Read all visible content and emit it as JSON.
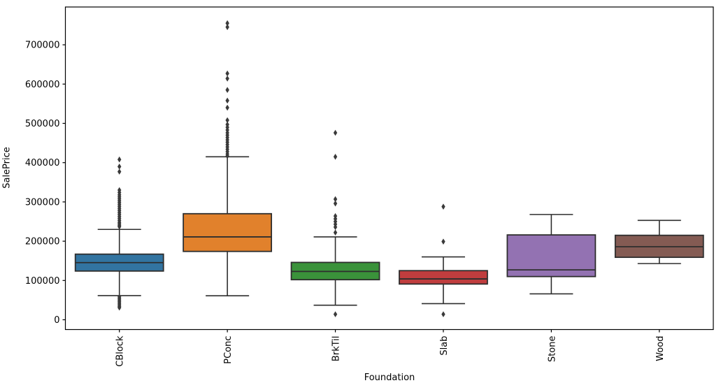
{
  "figure": {
    "background": "#ffffff",
    "text_color": "#000000",
    "spine_color": "#000000",
    "edge_color": "#2e2e2e",
    "flier_color": "#3a3a3a"
  },
  "chart_data": {
    "type": "boxplot",
    "title": "",
    "xlabel": "Foundation",
    "ylabel": "SalePrice",
    "orientation": "vertical",
    "grid": false,
    "legend_position": "none",
    "ylim": [
      -25000,
      795000
    ],
    "y_ticks": [
      0,
      100000,
      200000,
      300000,
      400000,
      500000,
      600000,
      700000
    ],
    "y_tick_labels": [
      "0",
      "100000",
      "200000",
      "300000",
      "400000",
      "500000",
      "600000",
      "700000"
    ],
    "categories": [
      "CBlock",
      "PConc",
      "BrkTil",
      "Slab",
      "Stone",
      "Wood"
    ],
    "box_colors": [
      "#3274a1",
      "#e1812c",
      "#3a923a",
      "#c03d3e",
      "#9372b2",
      "#845b53"
    ],
    "series": [
      {
        "name": "CBlock",
        "whisker_low": 61500,
        "q1": 124000,
        "median": 145500,
        "q3": 167000,
        "whisker_high": 230000,
        "outliers": [
          408000,
          390000,
          377000,
          330000,
          324000,
          318000,
          313000,
          308000,
          303000,
          298000,
          293000,
          288000,
          283000,
          278000,
          273000,
          268000,
          263000,
          258000,
          253000,
          248000,
          244000,
          240000,
          237000,
          58000,
          54000,
          50000,
          46000,
          42000,
          38000,
          34000,
          31000
        ]
      },
      {
        "name": "PConc",
        "whisker_low": 61000,
        "q1": 174000,
        "median": 211000,
        "q3": 270000,
        "whisker_high": 415000,
        "outliers": [
          755000,
          745000,
          627000,
          614000,
          585000,
          558000,
          540000,
          508000,
          497000,
          490000,
          483000,
          476000,
          470000,
          464000,
          458000,
          452000,
          446000,
          440000,
          434000,
          428000,
          422000,
          417000
        ]
      },
      {
        "name": "BrkTil",
        "whisker_low": 37000,
        "q1": 102000,
        "median": 123000,
        "q3": 146000,
        "whisker_high": 211000,
        "outliers": [
          476000,
          415000,
          307000,
          296000,
          264000,
          257000,
          250000,
          243000,
          236000,
          222000,
          14000
        ]
      },
      {
        "name": "Slab",
        "whisker_low": 41000,
        "q1": 91000,
        "median": 104000,
        "q3": 125000,
        "whisker_high": 160000,
        "outliers": [
          288000,
          199000,
          14000
        ]
      },
      {
        "name": "Stone",
        "whisker_low": 66000,
        "q1": 110000,
        "median": 127000,
        "q3": 216000,
        "whisker_high": 268000,
        "outliers": []
      },
      {
        "name": "Wood",
        "whisker_low": 143000,
        "q1": 159000,
        "median": 186000,
        "q3": 215000,
        "whisker_high": 253000,
        "outliers": []
      }
    ]
  }
}
